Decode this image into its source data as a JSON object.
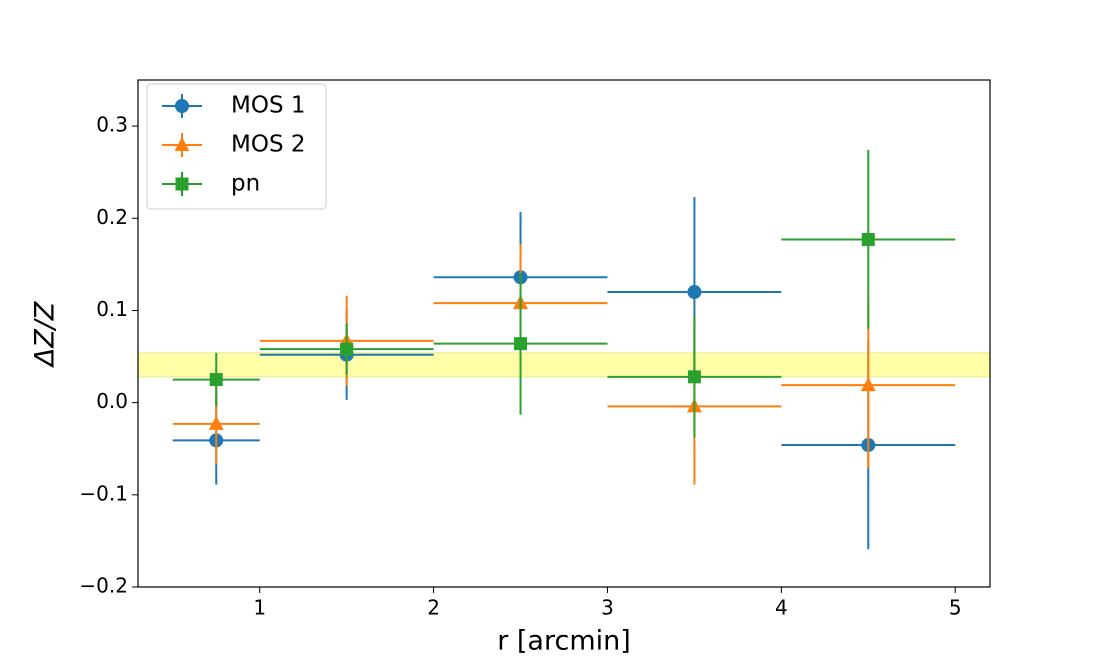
{
  "chart_data": {
    "type": "errorbar",
    "xlabel": "r [arcmin]",
    "ylabel": "ΔZ/Z",
    "xlim": [
      0.3,
      5.2
    ],
    "ylim": [
      -0.2,
      0.35
    ],
    "xticks": [
      1,
      2,
      3,
      4,
      5
    ],
    "yticks": [
      {
        "value": -0.2,
        "label": "−0.2"
      },
      {
        "value": -0.1,
        "label": "−0.1"
      },
      {
        "value": 0,
        "label": "0.0"
      },
      0.1,
      0.2,
      0.3
    ],
    "band": [
      0.028,
      0.054
    ],
    "band_color": "#ffff99",
    "legend": "upper left",
    "x": [
      0.75,
      1.5,
      2.5,
      3.5,
      4.5
    ],
    "xerr": [
      0.25,
      0.5,
      0.5,
      0.5,
      0.5
    ],
    "series": [
      {
        "name": "MOS 1",
        "color": "#1f77b4",
        "marker": "circle",
        "values": [
          -0.041,
          0.052,
          0.136,
          0.12,
          -0.046
        ],
        "yerr": [
          0.048,
          0.049,
          0.071,
          0.103,
          0.113
        ]
      },
      {
        "name": "MOS 2",
        "color": "#ff7f0e",
        "marker": "triangle",
        "values": [
          -0.023,
          0.067,
          0.108,
          -0.004,
          0.019
        ],
        "yerr": [
          0.044,
          0.049,
          0.064,
          0.085,
          0.09
        ]
      },
      {
        "name": "pn",
        "color": "#2ca02c",
        "marker": "square",
        "values": [
          0.025,
          0.058,
          0.064,
          0.028,
          0.177
        ],
        "yerr": [
          0.029,
          0.028,
          0.077,
          0.066,
          0.097
        ]
      }
    ]
  }
}
